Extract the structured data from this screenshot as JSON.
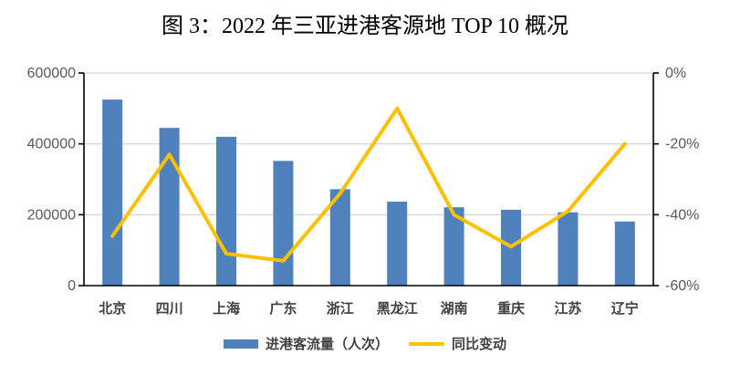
{
  "chart_data": {
    "type": "bar+line combo (dual axis)",
    "title": "图 3：2022 年三亚进港客源地 TOP 10 概况",
    "categories": [
      "北京",
      "四川",
      "上海",
      "广东",
      "浙江",
      "黑龙江",
      "湖南",
      "重庆",
      "江苏",
      "辽宁"
    ],
    "series": [
      {
        "name": "进港客流量（人次）",
        "type": "bar",
        "axis": "left",
        "color": "#4F81BD",
        "values": [
          525000,
          445000,
          420000,
          352000,
          272000,
          237000,
          221000,
          214000,
          207000,
          181000
        ]
      },
      {
        "name": "同比变动",
        "type": "line",
        "axis": "right",
        "color": "#FFC000",
        "unit": "%",
        "values": [
          -46,
          -23,
          -51,
          -53,
          -34,
          -10,
          -40,
          -49,
          -39,
          -20
        ]
      }
    ],
    "left_axis": {
      "min": 0,
      "max": 600000,
      "tick_labels": [
        "600000",
        "400000",
        "200000",
        "0"
      ]
    },
    "right_axis": {
      "min": -60,
      "max": 0,
      "tick_labels": [
        "0%",
        "-20%",
        "-40%",
        "-60%"
      ]
    },
    "grid": "horizontal",
    "legend_position": "bottom"
  },
  "colors": {
    "gridline": "#D9D9D9",
    "axis_line": "#000000",
    "axis_tick_label": "#595959",
    "category_label": "#404040",
    "title_text": "#000000",
    "background": "#FFFFFF"
  }
}
